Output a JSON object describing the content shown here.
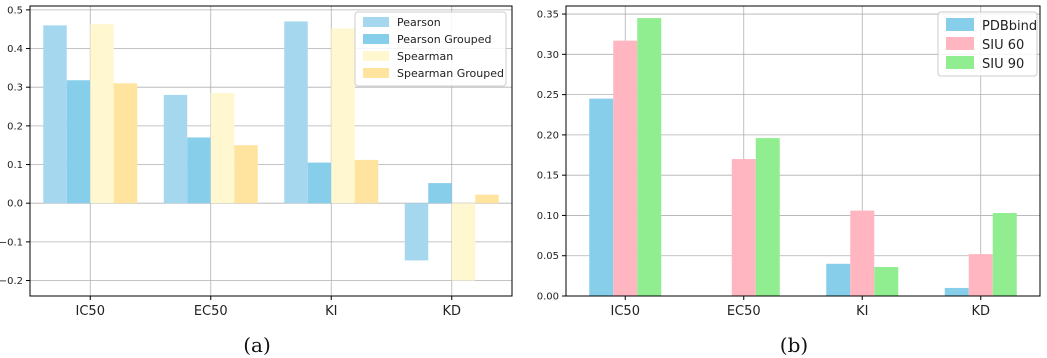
{
  "colors": {
    "pearson": "#a5d8ef",
    "pearson_grouped": "#87ceeb",
    "spearman": "#fff7cf",
    "spearman_grouped": "#ffe4a0",
    "pdbbind": "#87ceeb",
    "siu60": "#ffb6c1",
    "siu90": "#90ee90",
    "grid": "#b0b0b0",
    "axis": "#000000"
  },
  "chart_data": [
    {
      "type": "bar",
      "caption": "(a)",
      "categories": [
        "IC50",
        "EC50",
        "KI",
        "KD"
      ],
      "series": [
        {
          "name": "Pearson",
          "values": [
            0.46,
            0.28,
            0.47,
            -0.148
          ]
        },
        {
          "name": "Pearson Grouped",
          "values": [
            0.318,
            0.17,
            0.105,
            0.052
          ]
        },
        {
          "name": "Spearman",
          "values": [
            0.463,
            0.285,
            0.452,
            -0.2
          ]
        },
        {
          "name": "Spearman Grouped",
          "values": [
            0.31,
            0.15,
            0.112,
            0.022
          ]
        }
      ],
      "ylim": [
        -0.24,
        0.51
      ],
      "yticks": [
        -0.2,
        -0.1,
        0.0,
        0.1,
        0.2,
        0.3,
        0.4,
        0.5
      ],
      "ytick_labels": [
        "−0.2",
        "−0.1",
        "0.0",
        "0.1",
        "0.2",
        "0.3",
        "0.4",
        "0.5"
      ],
      "grid": true,
      "legend_position": "top-right"
    },
    {
      "type": "bar",
      "caption": "(b)",
      "categories": [
        "IC50",
        "EC50",
        "KI",
        "KD"
      ],
      "series": [
        {
          "name": "PDBbind",
          "values": [
            0.245,
            0.0,
            0.04,
            0.01
          ]
        },
        {
          "name": "SIU 60",
          "values": [
            0.317,
            0.17,
            0.106,
            0.052
          ]
        },
        {
          "name": "SIU 90",
          "values": [
            0.345,
            0.196,
            0.036,
            0.103
          ]
        }
      ],
      "ylim": [
        0,
        0.36
      ],
      "yticks": [
        0.0,
        0.05,
        0.1,
        0.15,
        0.2,
        0.25,
        0.3,
        0.35
      ],
      "ytick_labels": [
        "0.00",
        "0.05",
        "0.10",
        "0.15",
        "0.20",
        "0.25",
        "0.30",
        "0.35"
      ],
      "grid": true,
      "legend_position": "top-right"
    }
  ]
}
